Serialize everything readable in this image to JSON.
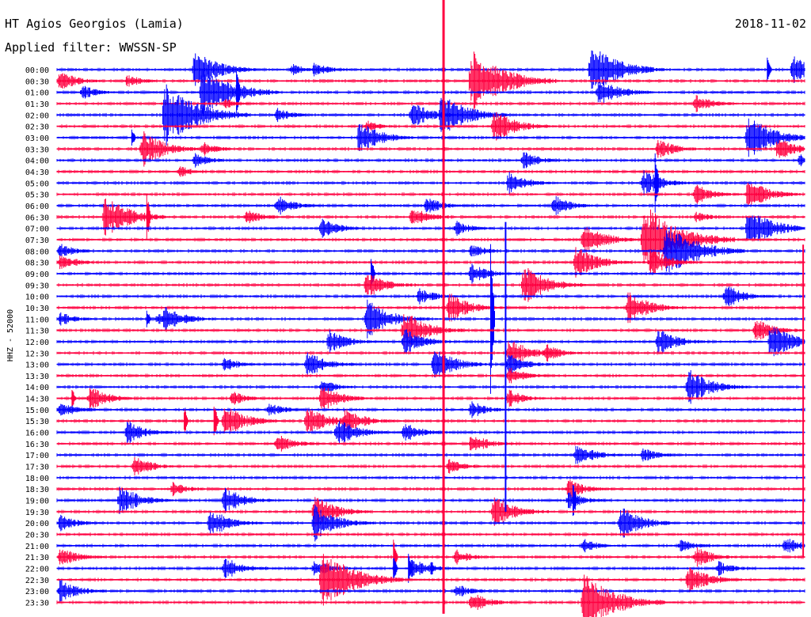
{
  "header": {
    "station": "HT Agios Georgios (Lamia)",
    "date": "2018-11-02",
    "filter": "Applied filter: WWSSN-SP"
  },
  "side_label": "HHZ - 52000",
  "colors": {
    "odd": "#0000ff",
    "even": "#ff0040",
    "background": "#ffffff"
  },
  "chart_data": {
    "type": "line",
    "title": "HT Agios Georgios (Lamia)",
    "ylabel": "HHZ - 52000",
    "row_labels": [
      "00:00",
      "00:30",
      "01:00",
      "01:30",
      "02:00",
      "02:30",
      "03:00",
      "03:30",
      "04:00",
      "04:30",
      "05:00",
      "05:30",
      "06:00",
      "06:30",
      "07:00",
      "07:30",
      "08:00",
      "08:30",
      "09:00",
      "09:30",
      "10:00",
      "10:30",
      "11:00",
      "11:30",
      "12:00",
      "12:30",
      "13:00",
      "13:30",
      "14:00",
      "14:30",
      "15:00",
      "15:30",
      "16:00",
      "16:30",
      "17:00",
      "17:30",
      "18:00",
      "18:30",
      "19:00",
      "19:30",
      "20:00",
      "20:30",
      "21:00",
      "21:30",
      "22:00",
      "22:30",
      "23:00",
      "23:30"
    ],
    "row_colors": [
      "blue",
      "red"
    ],
    "row_minutes": 30,
    "events": [
      [
        0,
        0.31,
        8
      ],
      [
        0,
        0.34,
        10
      ],
      [
        0,
        0.18,
        26
      ],
      [
        0,
        0.71,
        34
      ],
      [
        0,
        0.98,
        22
      ],
      [
        1,
        0.0,
        14
      ],
      [
        1,
        0.55,
        42
      ],
      [
        1,
        0.09,
        9
      ],
      [
        2,
        0.19,
        36
      ],
      [
        2,
        0.03,
        10
      ],
      [
        2,
        0.72,
        20
      ],
      [
        3,
        0.85,
        12
      ],
      [
        3,
        0.22,
        7
      ],
      [
        4,
        0.14,
        42
      ],
      [
        4,
        0.29,
        10
      ],
      [
        4,
        0.47,
        18
      ],
      [
        4,
        0.51,
        30
      ],
      [
        5,
        0.41,
        8
      ],
      [
        5,
        0.58,
        22
      ],
      [
        6,
        0.4,
        22
      ],
      [
        6,
        0.92,
        30
      ],
      [
        7,
        0.11,
        24
      ],
      [
        7,
        0.19,
        10
      ],
      [
        7,
        0.8,
        14
      ],
      [
        7,
        0.96,
        16
      ],
      [
        8,
        0.18,
        10
      ],
      [
        8,
        0.62,
        12
      ],
      [
        8,
        0.99,
        10
      ],
      [
        9,
        0.16,
        8
      ],
      [
        10,
        0.6,
        16
      ],
      [
        10,
        0.78,
        18
      ],
      [
        11,
        0.85,
        14
      ],
      [
        11,
        0.92,
        20
      ],
      [
        12,
        0.29,
        14
      ],
      [
        12,
        0.49,
        12
      ],
      [
        12,
        0.66,
        14
      ],
      [
        13,
        0.06,
        28
      ],
      [
        13,
        0.25,
        10
      ],
      [
        13,
        0.47,
        14
      ],
      [
        13,
        0.85,
        8
      ],
      [
        14,
        0.35,
        14
      ],
      [
        14,
        0.53,
        10
      ],
      [
        14,
        0.92,
        28
      ],
      [
        15,
        0.7,
        22
      ],
      [
        15,
        0.78,
        48
      ],
      [
        16,
        0.0,
        10
      ],
      [
        16,
        0.55,
        10
      ],
      [
        16,
        0.81,
        38
      ],
      [
        17,
        0.0,
        12
      ],
      [
        17,
        0.69,
        22
      ],
      [
        17,
        0.79,
        18
      ],
      [
        18,
        0.55,
        14
      ],
      [
        19,
        0.41,
        18
      ],
      [
        19,
        0.62,
        26
      ],
      [
        20,
        0.48,
        12
      ],
      [
        20,
        0.89,
        16
      ],
      [
        21,
        0.52,
        20
      ],
      [
        21,
        0.76,
        22
      ],
      [
        22,
        0.0,
        10
      ],
      [
        22,
        0.13,
        8
      ],
      [
        22,
        0.14,
        18
      ],
      [
        22,
        0.41,
        26
      ],
      [
        23,
        0.46,
        26
      ],
      [
        23,
        0.93,
        16
      ],
      [
        24,
        0.36,
        16
      ],
      [
        24,
        0.46,
        18
      ],
      [
        24,
        0.8,
        18
      ],
      [
        24,
        0.95,
        24
      ],
      [
        25,
        0.6,
        20
      ],
      [
        25,
        0.65,
        12
      ],
      [
        26,
        0.22,
        10
      ],
      [
        26,
        0.33,
        18
      ],
      [
        26,
        0.5,
        22
      ],
      [
        26,
        0.6,
        14
      ],
      [
        27,
        0.6,
        12
      ],
      [
        28,
        0.35,
        10
      ],
      [
        28,
        0.84,
        24
      ],
      [
        29,
        0.04,
        16
      ],
      [
        29,
        0.23,
        10
      ],
      [
        29,
        0.35,
        18
      ],
      [
        29,
        0.6,
        12
      ],
      [
        30,
        0.0,
        12
      ],
      [
        30,
        0.28,
        10
      ],
      [
        30,
        0.55,
        12
      ],
      [
        31,
        0.22,
        22
      ],
      [
        31,
        0.33,
        20
      ],
      [
        31,
        0.38,
        18
      ],
      [
        32,
        0.09,
        16
      ],
      [
        32,
        0.37,
        20
      ],
      [
        32,
        0.46,
        14
      ],
      [
        33,
        0.29,
        14
      ],
      [
        33,
        0.55,
        14
      ],
      [
        34,
        0.69,
        16
      ],
      [
        34,
        0.78,
        10
      ],
      [
        35,
        0.1,
        14
      ],
      [
        35,
        0.52,
        10
      ],
      [
        37,
        0.15,
        10
      ],
      [
        37,
        0.68,
        14
      ],
      [
        38,
        0.08,
        20
      ],
      [
        38,
        0.22,
        18
      ],
      [
        38,
        0.68,
        12
      ],
      [
        39,
        0.34,
        22
      ],
      [
        39,
        0.58,
        22
      ],
      [
        40,
        0.0,
        12
      ],
      [
        40,
        0.2,
        20
      ],
      [
        40,
        0.34,
        24
      ],
      [
        40,
        0.75,
        22
      ],
      [
        42,
        0.7,
        10
      ],
      [
        42,
        0.83,
        10
      ],
      [
        42,
        0.97,
        12
      ],
      [
        43,
        0.0,
        14
      ],
      [
        43,
        0.53,
        10
      ],
      [
        43,
        0.85,
        14
      ],
      [
        44,
        0.22,
        16
      ],
      [
        44,
        0.34,
        12
      ],
      [
        44,
        0.47,
        14
      ],
      [
        44,
        0.88,
        10
      ],
      [
        45,
        0.35,
        40
      ],
      [
        45,
        0.84,
        20
      ],
      [
        46,
        0.0,
        16
      ],
      [
        46,
        0.53,
        10
      ],
      [
        47,
        0.55,
        14
      ],
      [
        47,
        0.7,
        40
      ]
    ],
    "spikes": [
      [
        0,
        0.95,
        18
      ],
      [
        2,
        0.24,
        30
      ],
      [
        6,
        0.1,
        12
      ],
      [
        10,
        0.8,
        40
      ],
      [
        13,
        0.12,
        30
      ],
      [
        18,
        0.42,
        20
      ],
      [
        22,
        0.12,
        12
      ],
      [
        22,
        0.58,
        100
      ],
      [
        29,
        0.02,
        12
      ],
      [
        31,
        0.17,
        18
      ],
      [
        31,
        0.21,
        24
      ],
      [
        38,
        0.69,
        24
      ],
      [
        43,
        0.45,
        24
      ],
      [
        44,
        0.45,
        16
      ],
      [
        44,
        0.47,
        20
      ],
      [
        44,
        0.5,
        12
      ]
    ],
    "vertical_lines": [
      {
        "x": 0.517,
        "from_row": 0,
        "to_row": 48,
        "color": "red"
      },
      {
        "x": 0.6,
        "from_row": 14,
        "to_row": 39,
        "color": "blue"
      },
      {
        "x": 0.998,
        "from_row": 16,
        "to_row": 43,
        "color": "red"
      }
    ]
  }
}
